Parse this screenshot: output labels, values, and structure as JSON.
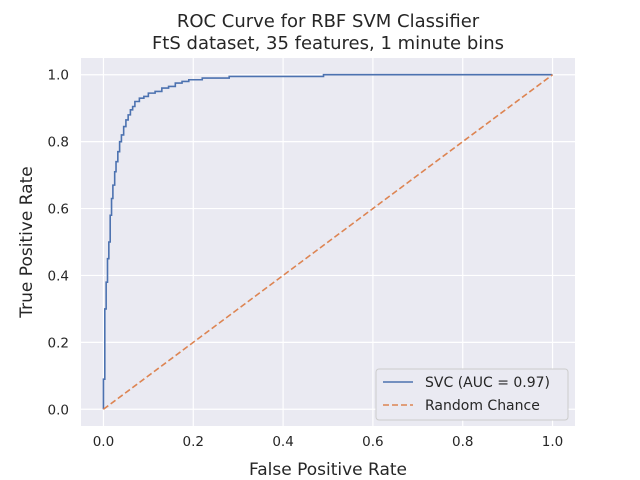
{
  "chart_data": {
    "type": "line",
    "title": "ROC Curve for RBF SVM Classifier",
    "subtitle": "FtS dataset, 35 features, 1 minute bins",
    "xlabel": "False Positive Rate",
    "ylabel": "True Positive Rate",
    "xlim": [
      -0.05,
      1.05
    ],
    "ylim": [
      -0.05,
      1.05
    ],
    "xticks": [
      0.0,
      0.2,
      0.4,
      0.6,
      0.8,
      1.0
    ],
    "yticks": [
      0.0,
      0.2,
      0.4,
      0.6,
      0.8,
      1.0
    ],
    "xtick_labels": [
      "0.0",
      "0.2",
      "0.4",
      "0.6",
      "0.8",
      "1.0"
    ],
    "ytick_labels": [
      "0.0",
      "0.2",
      "0.4",
      "0.6",
      "0.8",
      "1.0"
    ],
    "grid": true,
    "legend_position": "bottom-right",
    "series": [
      {
        "name": "SVC (AUC = 0.97)",
        "color": "#4c72b0",
        "style": "solid",
        "x": [
          0.0,
          0.0,
          0.003,
          0.003,
          0.006,
          0.006,
          0.009,
          0.009,
          0.012,
          0.012,
          0.015,
          0.015,
          0.018,
          0.018,
          0.021,
          0.021,
          0.025,
          0.025,
          0.028,
          0.028,
          0.032,
          0.032,
          0.036,
          0.036,
          0.04,
          0.04,
          0.045,
          0.045,
          0.05,
          0.05,
          0.055,
          0.055,
          0.06,
          0.06,
          0.065,
          0.065,
          0.07,
          0.07,
          0.08,
          0.08,
          0.09,
          0.09,
          0.1,
          0.1,
          0.115,
          0.115,
          0.13,
          0.13,
          0.145,
          0.145,
          0.16,
          0.16,
          0.175,
          0.175,
          0.19,
          0.19,
          0.22,
          0.22,
          0.28,
          0.28,
          0.33,
          0.33,
          0.49,
          0.49,
          1.0
        ],
        "y": [
          0.0,
          0.09,
          0.09,
          0.3,
          0.3,
          0.38,
          0.38,
          0.45,
          0.45,
          0.5,
          0.5,
          0.58,
          0.58,
          0.63,
          0.63,
          0.67,
          0.67,
          0.71,
          0.71,
          0.74,
          0.74,
          0.77,
          0.77,
          0.8,
          0.8,
          0.82,
          0.82,
          0.845,
          0.845,
          0.865,
          0.865,
          0.88,
          0.88,
          0.895,
          0.895,
          0.905,
          0.905,
          0.92,
          0.92,
          0.93,
          0.93,
          0.935,
          0.935,
          0.945,
          0.945,
          0.95,
          0.95,
          0.96,
          0.96,
          0.965,
          0.965,
          0.975,
          0.975,
          0.98,
          0.98,
          0.985,
          0.985,
          0.99,
          0.99,
          0.995,
          0.995,
          0.995,
          0.995,
          1.0,
          1.0
        ]
      },
      {
        "name": "Random Chance",
        "color": "#dd8452",
        "style": "dashed",
        "x": [
          0.0,
          1.0
        ],
        "y": [
          0.0,
          1.0
        ]
      }
    ]
  },
  "colors": {
    "plot_background": "#eaeaf2",
    "grid": "#ffffff",
    "text": "#262626"
  }
}
